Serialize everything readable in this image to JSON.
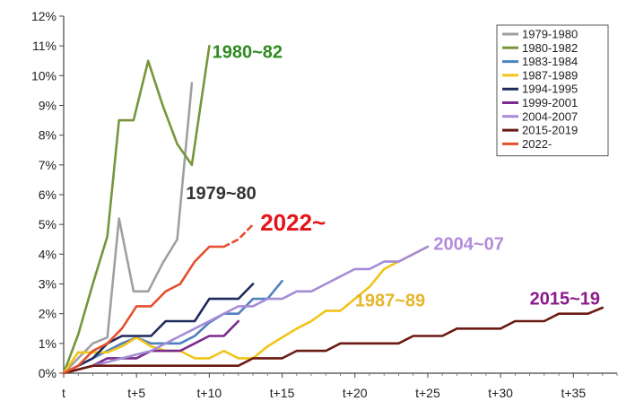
{
  "chart_data": {
    "type": "line",
    "title": "",
    "xlabel": "",
    "ylabel": "",
    "xlim": [
      0,
      38
    ],
    "ylim": [
      0,
      12
    ],
    "x_ticks": [
      {
        "x": 0,
        "label": "t"
      },
      {
        "x": 5,
        "label": "t+5"
      },
      {
        "x": 10,
        "label": "t+10"
      },
      {
        "x": 15,
        "label": "t+15"
      },
      {
        "x": 20,
        "label": "t+20"
      },
      {
        "x": 25,
        "label": "t+25"
      },
      {
        "x": 30,
        "label": "t+30"
      },
      {
        "x": 35,
        "label": "t+35"
      }
    ],
    "y_ticks": [
      {
        "y": 0,
        "label": "0%"
      },
      {
        "y": 1,
        "label": "1%"
      },
      {
        "y": 2,
        "label": "2%"
      },
      {
        "y": 3,
        "label": "3%"
      },
      {
        "y": 4,
        "label": "4%"
      },
      {
        "y": 5,
        "label": "5%"
      },
      {
        "y": 6,
        "label": "6%"
      },
      {
        "y": 7,
        "label": "7%"
      },
      {
        "y": 8,
        "label": "8%"
      },
      {
        "y": 9,
        "label": "9%"
      },
      {
        "y": 10,
        "label": "10%"
      },
      {
        "y": 11,
        "label": "11%"
      },
      {
        "y": 12,
        "label": "12%"
      }
    ],
    "grid": false,
    "legend_position": "top-right",
    "series": [
      {
        "name": "1979-1980",
        "color": "#a0a0a0",
        "points": [
          [
            0,
            0
          ],
          [
            1,
            0.5
          ],
          [
            2,
            1.0
          ],
          [
            3,
            1.2
          ],
          [
            3.8,
            5.2
          ],
          [
            4.8,
            2.75
          ],
          [
            5.8,
            2.75
          ],
          [
            6.8,
            3.7
          ],
          [
            7.8,
            4.5
          ],
          [
            8.8,
            9.75
          ]
        ]
      },
      {
        "name": "1980-1982",
        "color": "#76963b",
        "points": [
          [
            0,
            0
          ],
          [
            1,
            1.3
          ],
          [
            2,
            3.0
          ],
          [
            3,
            4.6
          ],
          [
            3.8,
            8.5
          ],
          [
            4.8,
            8.5
          ],
          [
            5.8,
            10.5
          ],
          [
            6.8,
            9.0
          ],
          [
            7.8,
            7.7
          ],
          [
            8.8,
            7.0
          ],
          [
            10,
            11.0
          ]
        ]
      },
      {
        "name": "1983-1984",
        "color": "#4f81bd",
        "points": [
          [
            0,
            0
          ],
          [
            2,
            0.5
          ],
          [
            4,
            1.0
          ],
          [
            5,
            1.2
          ],
          [
            6,
            1.0
          ],
          [
            8,
            1.0
          ],
          [
            9,
            1.25
          ],
          [
            10,
            1.7
          ],
          [
            11,
            2.0
          ],
          [
            12,
            2.0
          ],
          [
            13,
            2.5
          ],
          [
            14,
            2.5
          ],
          [
            15,
            3.1
          ]
        ]
      },
      {
        "name": "1987-1989",
        "color": "#f0c419",
        "points": [
          [
            0,
            0
          ],
          [
            1,
            0.7
          ],
          [
            2,
            0.7
          ],
          [
            3,
            0.7
          ],
          [
            4,
            0.9
          ],
          [
            5,
            1.2
          ],
          [
            6,
            0.9
          ],
          [
            7,
            0.75
          ],
          [
            8,
            0.75
          ],
          [
            9,
            0.5
          ],
          [
            10,
            0.5
          ],
          [
            11,
            0.75
          ],
          [
            12,
            0.5
          ],
          [
            13,
            0.5
          ],
          [
            14,
            0.9
          ],
          [
            15,
            1.2
          ],
          [
            16,
            1.5
          ],
          [
            17,
            1.75
          ],
          [
            18,
            2.1
          ],
          [
            19,
            2.1
          ],
          [
            20,
            2.5
          ],
          [
            21,
            2.9
          ],
          [
            22,
            3.5
          ],
          [
            23,
            3.75
          ],
          [
            24,
            4.0
          ],
          [
            25,
            4.25
          ]
        ]
      },
      {
        "name": "1994-1995",
        "color": "#1f2a5c",
        "points": [
          [
            0,
            0
          ],
          [
            2,
            0.5
          ],
          [
            3,
            1.0
          ],
          [
            4,
            1.25
          ],
          [
            5,
            1.25
          ],
          [
            6,
            1.25
          ],
          [
            7,
            1.75
          ],
          [
            8,
            1.75
          ],
          [
            9,
            1.75
          ],
          [
            10,
            2.5
          ],
          [
            11,
            2.5
          ],
          [
            12,
            2.5
          ],
          [
            13,
            3.0
          ]
        ]
      },
      {
        "name": "1999-2001",
        "color": "#7a2b8c",
        "points": [
          [
            0,
            0
          ],
          [
            2,
            0.25
          ],
          [
            3,
            0.5
          ],
          [
            4,
            0.5
          ],
          [
            5,
            0.5
          ],
          [
            6,
            0.75
          ],
          [
            7,
            0.75
          ],
          [
            8,
            0.75
          ],
          [
            9,
            1.0
          ],
          [
            10,
            1.25
          ],
          [
            11,
            1.25
          ],
          [
            12,
            1.75
          ]
        ]
      },
      {
        "name": "2004-2007",
        "color": "#a58cd6",
        "points": [
          [
            0,
            0
          ],
          [
            2,
            0.25
          ],
          [
            4,
            0.5
          ],
          [
            6,
            0.75
          ],
          [
            8,
            1.25
          ],
          [
            9,
            1.5
          ],
          [
            10,
            1.75
          ],
          [
            11,
            2.0
          ],
          [
            12,
            2.25
          ],
          [
            13,
            2.25
          ],
          [
            14,
            2.5
          ],
          [
            15,
            2.5
          ],
          [
            16,
            2.75
          ],
          [
            17,
            2.75
          ],
          [
            18,
            3.0
          ],
          [
            19,
            3.25
          ],
          [
            20,
            3.5
          ],
          [
            21,
            3.5
          ],
          [
            22,
            3.75
          ],
          [
            23,
            3.75
          ],
          [
            24,
            4.0
          ],
          [
            25,
            4.25
          ]
        ]
      },
      {
        "name": "2015-2019",
        "color": "#6b1a12",
        "points": [
          [
            0,
            0
          ],
          [
            2,
            0.25
          ],
          [
            4,
            0.25
          ],
          [
            6,
            0.25
          ],
          [
            8,
            0.25
          ],
          [
            10,
            0.25
          ],
          [
            11,
            0.25
          ],
          [
            12,
            0.25
          ],
          [
            13,
            0.5
          ],
          [
            14,
            0.5
          ],
          [
            15,
            0.5
          ],
          [
            16,
            0.75
          ],
          [
            17,
            0.75
          ],
          [
            18,
            0.75
          ],
          [
            19,
            1.0
          ],
          [
            20,
            1.0
          ],
          [
            21,
            1.0
          ],
          [
            22,
            1.0
          ],
          [
            23,
            1.0
          ],
          [
            24,
            1.25
          ],
          [
            25,
            1.25
          ],
          [
            26,
            1.25
          ],
          [
            27,
            1.5
          ],
          [
            28,
            1.5
          ],
          [
            29,
            1.5
          ],
          [
            30,
            1.5
          ],
          [
            31,
            1.75
          ],
          [
            32,
            1.75
          ],
          [
            33,
            1.75
          ],
          [
            34,
            2.0
          ],
          [
            35,
            2.0
          ],
          [
            36,
            2.0
          ],
          [
            37,
            2.2
          ]
        ]
      },
      {
        "name": "2022-",
        "color": "#e4502e",
        "points": [
          [
            0,
            0
          ],
          [
            1,
            0.25
          ],
          [
            2,
            0.75
          ],
          [
            3,
            1.0
          ],
          [
            4,
            1.5
          ],
          [
            5,
            2.25
          ],
          [
            6,
            2.25
          ],
          [
            7,
            2.75
          ],
          [
            8,
            3.0
          ],
          [
            9,
            3.75
          ],
          [
            10,
            4.25
          ],
          [
            11,
            4.25
          ]
        ],
        "forecast": [
          [
            11,
            4.25
          ],
          [
            12,
            4.5
          ],
          [
            13,
            5.0
          ]
        ]
      }
    ],
    "annotations": [
      {
        "text": "1980~82",
        "color": "#2e8b1f",
        "x": 10.2,
        "y": 10.6,
        "size": 20
      },
      {
        "text": "1979~80",
        "color": "#333333",
        "x": 8.4,
        "y": 5.85,
        "size": 20
      },
      {
        "text": "2022~",
        "color": "#e3141c",
        "x": 13.5,
        "y": 4.8,
        "size": 26
      },
      {
        "text": "2004~07",
        "color": "#b48cd8",
        "x": 25.4,
        "y": 4.15,
        "size": 20
      },
      {
        "text": "1987~89",
        "color": "#e6b52a",
        "x": 20.0,
        "y": 2.25,
        "size": 20
      },
      {
        "text": "2015~19",
        "color": "#8b1a8b",
        "x": 32.0,
        "y": 2.3,
        "size": 20
      }
    ]
  }
}
